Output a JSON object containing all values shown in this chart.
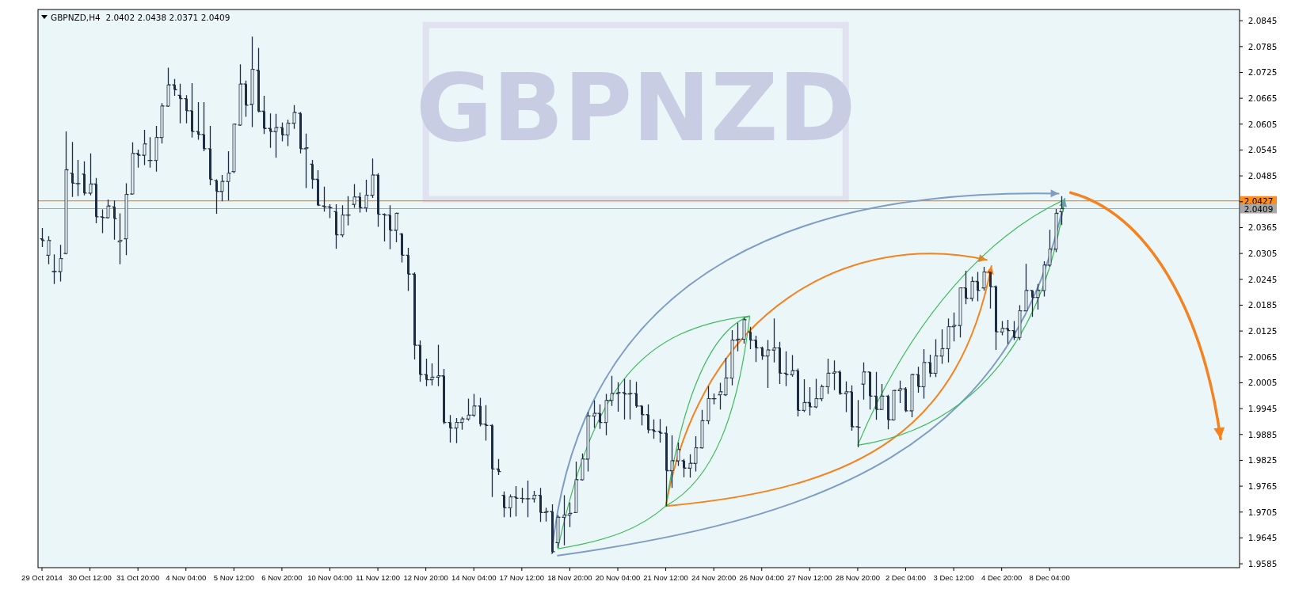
{
  "chart_data": {
    "type": "candlestick",
    "title": "GBPNZD,H4  2.0402 2.0438 2.0371 2.0409",
    "annotations": [
      "GBPNZD"
    ],
    "color": "#1f2d42",
    "categories": [
      "29 Oct 2014",
      null,
      null,
      null,
      null,
      null,
      null,
      null,
      "30 Oct 12:00",
      null,
      null,
      null,
      null,
      null,
      null,
      null,
      "31 Oct 20:00",
      null,
      null,
      null,
      null,
      null,
      null,
      null,
      "4 Nov 04:00",
      null,
      null,
      null,
      null,
      null,
      null,
      null,
      "5 Nov 12:00",
      null,
      null,
      null,
      null,
      null,
      null,
      null,
      "6 Nov 20:00",
      null,
      null,
      null,
      null,
      null,
      null,
      null,
      "10 Nov 04:00",
      null,
      null,
      null,
      null,
      null,
      null,
      null,
      "11 Nov 12:00",
      null,
      null,
      null,
      null,
      null,
      null,
      null,
      "12 Nov 20:00",
      null,
      null,
      null,
      null,
      null,
      null,
      null,
      "14 Nov 04:00",
      null,
      null,
      null,
      null,
      null,
      null,
      null,
      "17 Nov 12:00",
      null,
      null,
      null,
      null,
      null,
      null,
      null,
      "18 Nov 20:00",
      null,
      null,
      null,
      null,
      null,
      null,
      null,
      "20 Nov 04:00",
      null,
      null,
      null,
      null,
      null,
      null,
      null,
      "21 Nov 12:00",
      null,
      null,
      null,
      null,
      null,
      null,
      null,
      "24 Nov 20:00",
      null,
      null,
      null,
      null,
      null,
      null,
      null,
      "26 Nov 04:00",
      null,
      null,
      null,
      null,
      null,
      null,
      null,
      "27 Nov 12:00",
      null,
      null,
      null,
      null,
      null,
      null,
      null,
      "28 Nov 20:00",
      null,
      null,
      null,
      null,
      null,
      null,
      null,
      "2 Dec 04:00",
      null,
      null,
      null,
      null,
      null,
      null,
      null,
      "3 Dec 12:00",
      null,
      null,
      null,
      null,
      null,
      null,
      null,
      "4 Dec 20:00",
      null,
      null,
      null,
      null,
      null,
      null,
      null,
      "8 Dec 04:00",
      null,
      null,
      null,
      null,
      null,
      null,
      null,
      null,
      null,
      null,
      null,
      null,
      null,
      null,
      null,
      null,
      null,
      null,
      null,
      null,
      null,
      null,
      null,
      null,
      null,
      null,
      null,
      null,
      null,
      null,
      null
    ],
    "ohlc": [
      [
        2.0339,
        2.0364,
        2.032,
        2.0335
      ],
      [
        2.0301,
        2.0345,
        2.028,
        2.0335
      ],
      [
        2.0263,
        2.0303,
        2.0234,
        2.0263
      ],
      [
        2.0263,
        2.0325,
        2.024,
        2.0293
      ],
      [
        2.0305,
        2.0588,
        2.0303,
        2.0499
      ],
      [
        2.0491,
        2.0564,
        2.0436,
        2.0468
      ],
      [
        2.0467,
        2.0522,
        2.0438,
        2.0467
      ],
      [
        2.0489,
        2.0519,
        2.044,
        2.0445
      ],
      [
        2.0445,
        2.0537,
        2.044,
        2.0466
      ],
      [
        2.0466,
        2.048,
        2.0375,
        2.039
      ],
      [
        2.039,
        2.0407,
        2.0352,
        2.0388
      ],
      [
        2.0388,
        2.043,
        2.0386,
        2.0415
      ],
      [
        2.0413,
        2.0428,
        2.0337,
        2.0386
      ],
      [
        2.0332,
        2.0398,
        2.028,
        2.0335
      ],
      [
        2.0339,
        2.0468,
        2.0301,
        2.0442
      ],
      [
        2.0443,
        2.0563,
        2.0442,
        2.0537
      ],
      [
        2.0537,
        2.0546,
        2.0504,
        2.0533
      ],
      [
        2.0533,
        2.0592,
        2.051,
        2.0559
      ],
      [
        2.0521,
        2.0575,
        2.0504,
        2.0521
      ],
      [
        2.0521,
        2.0601,
        2.0495,
        2.0574
      ],
      [
        2.0574,
        2.0654,
        2.056,
        2.0647
      ],
      [
        2.0647,
        2.0736,
        2.0645,
        2.0696
      ],
      [
        2.0696,
        2.071,
        2.0671,
        2.0685
      ],
      [
        2.0672,
        2.0699,
        2.0607,
        2.0664
      ],
      [
        2.0664,
        2.0672,
        2.0607,
        2.0636
      ],
      [
        2.0636,
        2.07,
        2.0574,
        2.0588
      ],
      [
        2.0588,
        2.0656,
        2.0569,
        2.0581
      ],
      [
        2.0581,
        2.0656,
        2.0542,
        2.0548
      ],
      [
        2.0548,
        2.0601,
        2.0463,
        2.0477
      ],
      [
        2.0474,
        2.0477,
        2.0397,
        2.0449
      ],
      [
        2.0449,
        2.0487,
        2.0426,
        2.0472
      ],
      [
        2.0472,
        2.0542,
        2.0428,
        2.0491
      ],
      [
        2.0495,
        2.0605,
        2.0491,
        2.0605
      ],
      [
        2.0603,
        2.0744,
        2.0601,
        2.0698
      ],
      [
        2.0698,
        2.0706,
        2.0622,
        2.0649
      ],
      [
        2.0651,
        2.0808,
        2.0598,
        2.0732
      ],
      [
        2.073,
        2.0782,
        2.0632,
        2.0635
      ],
      [
        2.0635,
        2.0671,
        2.0582,
        2.0595
      ],
      [
        2.0595,
        2.063,
        2.055,
        2.0588
      ],
      [
        2.0588,
        2.0629,
        2.0527,
        2.0597
      ],
      [
        2.0597,
        2.0609,
        2.0565,
        2.058
      ],
      [
        2.058,
        2.0615,
        2.0554,
        2.0607
      ],
      [
        2.0607,
        2.0649,
        2.0594,
        2.0632
      ],
      [
        2.063,
        2.0633,
        2.0537,
        2.0548
      ],
      [
        2.0548,
        2.0583,
        2.0457,
        2.055
      ],
      [
        2.0512,
        2.0522,
        2.0455,
        2.0477
      ],
      [
        2.0477,
        2.0498,
        2.0415,
        2.0417
      ],
      [
        2.0415,
        2.046,
        2.0402,
        2.0413
      ],
      [
        2.0413,
        2.0419,
        2.0387,
        2.0411
      ],
      [
        2.0402,
        2.0419,
        2.0316,
        2.0348
      ],
      [
        2.0348,
        2.0417,
        2.0343,
        2.0394
      ],
      [
        2.0394,
        2.0438,
        2.037,
        2.0394
      ],
      [
        2.0419,
        2.0466,
        2.0411,
        2.0436
      ],
      [
        2.0436,
        2.0446,
        2.04,
        2.0411
      ],
      [
        2.0411,
        2.0476,
        2.0401,
        2.044
      ],
      [
        2.044,
        2.0525,
        2.0434,
        2.0487
      ],
      [
        2.0487,
        2.0491,
        2.0367,
        2.0396
      ],
      [
        2.0396,
        2.0398,
        2.0333,
        2.0394
      ],
      [
        2.0394,
        2.0417,
        2.0315,
        2.0359
      ],
      [
        2.0359,
        2.04,
        2.0331,
        2.0398
      ],
      [
        2.035,
        2.0353,
        2.0284,
        2.0301
      ],
      [
        2.0301,
        2.0318,
        2.0218,
        2.0257
      ],
      [
        2.0257,
        2.0261,
        2.0059,
        2.0092
      ],
      [
        2.0092,
        2.0103,
        2.0007,
        2.0024
      ],
      [
        2.0024,
        2.0061,
        1.9997,
        2.0012
      ],
      [
        2.0012,
        2.005,
        1.9999,
        2.0018
      ],
      [
        2.0018,
        2.0093,
        1.9997,
        2.0021
      ],
      [
        2.0021,
        2.0037,
        1.9909,
        1.9913
      ],
      [
        1.9913,
        1.993,
        1.9866,
        1.99
      ],
      [
        1.99,
        1.9923,
        1.9865,
        1.9913
      ],
      [
        1.9913,
        1.9926,
        1.9896,
        1.9921
      ],
      [
        1.9921,
        1.9968,
        1.9917,
        1.993
      ],
      [
        1.993,
        1.9979,
        1.9926,
        1.9951
      ],
      [
        1.9951,
        1.997,
        1.9904,
        1.9909
      ],
      [
        1.9909,
        1.9953,
        1.9871,
        1.9906
      ],
      [
        1.9906,
        1.9909,
        1.974,
        1.9805
      ],
      [
        1.9805,
        1.9828,
        1.9791,
        1.9799
      ],
      [
        1.9744,
        1.9753,
        1.9693,
        1.9715
      ],
      [
        1.9715,
        1.9746,
        1.9693,
        1.974
      ],
      [
        1.974,
        1.9765,
        1.9695,
        1.9737
      ],
      [
        1.9737,
        1.9761,
        1.9726,
        1.9736
      ],
      [
        1.9736,
        1.9778,
        1.9693,
        1.9736
      ],
      [
        1.9736,
        1.9754,
        1.9727,
        1.9744
      ],
      [
        1.9744,
        1.9761,
        1.9682,
        1.9704
      ],
      [
        1.9704,
        1.9715,
        1.9683,
        1.9706
      ],
      [
        1.9706,
        1.9723,
        1.9609,
        1.9613
      ],
      [
        1.9634,
        1.9698,
        1.9622,
        1.9693
      ],
      [
        1.9693,
        1.9744,
        1.9628,
        1.9698
      ],
      [
        1.9698,
        1.9727,
        1.967,
        1.9702
      ],
      [
        1.9704,
        1.9822,
        1.9704,
        1.978
      ],
      [
        1.978,
        1.9841,
        1.9778,
        1.9828
      ],
      [
        1.9828,
        1.9937,
        1.9799,
        1.9928
      ],
      [
        1.9928,
        1.9964,
        1.99,
        1.9934
      ],
      [
        1.9934,
        1.9955,
        1.9898,
        1.9913
      ],
      [
        1.9913,
        1.9979,
        1.9883,
        1.9964
      ],
      [
        1.9964,
        2.0021,
        1.9951,
        1.998
      ],
      [
        1.998,
        2.0006,
        1.9938,
        1.9982
      ],
      [
        1.9982,
        2.0014,
        1.992,
        1.9979
      ],
      [
        1.9979,
        2.0012,
        1.992,
        1.998
      ],
      [
        1.998,
        2.0007,
        1.9947,
        1.9951
      ],
      [
        1.9951,
        1.9953,
        1.9906,
        1.9931
      ],
      [
        1.9931,
        1.9955,
        1.9888,
        1.9896
      ],
      [
        1.9896,
        1.992,
        1.9875,
        1.9892
      ],
      [
        1.9892,
        1.9921,
        1.9866,
        1.9888
      ],
      [
        1.9888,
        1.9904,
        1.9719,
        1.9801
      ],
      [
        1.9801,
        1.9883,
        1.9761,
        1.9824
      ],
      [
        1.9824,
        1.9866,
        1.9812,
        1.985
      ],
      [
        1.9824,
        1.9828,
        1.9786,
        1.9807
      ],
      [
        1.9807,
        1.9839,
        1.9785,
        1.9818
      ],
      [
        1.9818,
        1.9881,
        1.9799,
        1.9854
      ],
      [
        1.9854,
        1.9942,
        1.9852,
        1.9917
      ],
      [
        1.9917,
        1.9997,
        1.9909,
        1.9968
      ],
      [
        1.9968,
        1.998,
        1.9955,
        1.9968
      ],
      [
        1.9977,
        2.0005,
        1.9943,
        1.9984
      ],
      [
        1.9977,
        2.0063,
        1.9974,
        2.0016
      ],
      [
        2.0016,
        2.0127,
        1.9999,
        2.0104
      ],
      [
        2.0104,
        2.0144,
        2.0078,
        2.0106
      ],
      [
        2.0106,
        2.0157,
        2.0096,
        2.0151
      ],
      [
        2.0123,
        2.0135,
        2.0083,
        2.0104
      ],
      [
        2.0104,
        2.0114,
        2.0053,
        2.0086
      ],
      [
        2.0086,
        2.0089,
        2.0058,
        2.0067
      ],
      [
        2.0067,
        2.0104,
        1.9993,
        2.0081
      ],
      [
        2.0081,
        2.0154,
        2.0052,
        2.0086
      ],
      [
        2.0086,
        2.01,
        2.0002,
        2.0027
      ],
      [
        2.0027,
        2.0078,
        1.9997,
        2.0024
      ],
      [
        2.0024,
        2.0069,
        2.0019,
        2.0033
      ],
      [
        2.0033,
        2.0038,
        1.9927,
        1.9941
      ],
      [
        1.9941,
        2.0013,
        1.9937,
        1.9959
      ],
      [
        1.9959,
        1.9995,
        1.9929,
        1.9949
      ],
      [
        1.9949,
        2.0014,
        1.9946,
        1.9968
      ],
      [
        1.9968,
        2.0001,
        1.9962,
        1.9996
      ],
      [
        1.9996,
        2.0061,
        1.9979,
        2.0027
      ],
      [
        2.0027,
        2.0057,
        1.9988,
        2.003
      ],
      [
        2.003,
        2.0034,
        1.9977,
        1.998
      ],
      [
        1.998,
        2.0008,
        1.9937,
        1.9984
      ],
      [
        1.9984,
        1.9999,
        1.9894,
        1.9903
      ],
      [
        1.9903,
        1.9965,
        1.9855,
        1.9902
      ],
      [
        2.0002,
        2.0052,
        1.9966,
        2.003
      ],
      [
        2.003,
        2.003,
        1.9943,
        1.9974
      ],
      [
        1.9974,
        2.003,
        1.9919,
        1.9943
      ],
      [
        1.9943,
        2.0002,
        1.9943,
        1.9974
      ],
      [
        1.9974,
        1.9977,
        1.9897,
        1.9919
      ],
      [
        1.9919,
        1.9988,
        1.9917,
        1.9987
      ],
      [
        1.9987,
        2.001,
        1.9958,
        1.9991
      ],
      [
        1.9991,
        1.9995,
        1.9937,
        1.994
      ],
      [
        1.994,
        2.0026,
        1.9925,
        2.0024
      ],
      [
        2.0024,
        2.0042,
        1.9982,
        1.9996
      ],
      [
        1.9996,
        2.0083,
        1.9968,
        2.0052
      ],
      [
        2.0052,
        2.007,
        2.0018,
        2.0027
      ],
      [
        2.0027,
        2.0106,
        2.0018,
        2.0067
      ],
      [
        2.0067,
        2.0129,
        2.0049,
        2.0084
      ],
      [
        2.0084,
        2.0154,
        2.0052,
        2.0135
      ],
      [
        2.0135,
        2.0168,
        2.0101,
        2.0138
      ],
      [
        2.0138,
        2.0226,
        2.011,
        2.0225
      ],
      [
        2.0225,
        2.0265,
        2.0187,
        2.0201
      ],
      [
        2.0201,
        2.0251,
        2.0194,
        2.024
      ],
      [
        2.024,
        2.0262,
        2.0194,
        2.0219
      ],
      [
        2.0225,
        2.0274,
        2.0219,
        2.0262
      ],
      [
        2.0262,
        2.0262,
        2.0177,
        2.0228
      ],
      [
        2.0228,
        2.0231,
        2.0081,
        2.0123
      ],
      [
        2.0123,
        2.0148,
        2.0115,
        2.0131
      ],
      [
        2.0131,
        2.0151,
        2.0095,
        2.0126
      ],
      [
        2.0126,
        2.0148,
        2.0104,
        2.011
      ],
      [
        2.011,
        2.0185,
        2.0104,
        2.0172
      ],
      [
        2.0172,
        2.0281,
        2.0172,
        2.0219
      ],
      [
        2.0219,
        2.022,
        2.0158,
        2.0203
      ],
      [
        2.0203,
        2.0234,
        2.0175,
        2.0219
      ],
      [
        2.0219,
        2.0287,
        2.0205,
        2.0278
      ],
      [
        2.0278,
        2.036,
        2.0274,
        2.0315
      ],
      [
        2.0315,
        2.0408,
        2.0308,
        2.0398
      ],
      [
        2.0402,
        2.0438,
        2.0371,
        2.0409
      ],
      null,
      null,
      null,
      null,
      null,
      null,
      null,
      null,
      null,
      null,
      null,
      null,
      null,
      null,
      null,
      null,
      null,
      null,
      null,
      null,
      null,
      null,
      null,
      null,
      null,
      null,
      null,
      null,
      null
    ],
    "ylim": [
      1.9576,
      2.0871
    ],
    "yticks": [
      1.9585,
      1.9645,
      1.9705,
      1.9765,
      1.9825,
      1.9885,
      1.9945,
      2.0005,
      2.0065,
      2.0125,
      2.0185,
      2.0245,
      2.0305,
      2.0365,
      {
        "value": 2.0425,
        "label": null
      },
      2.0485,
      2.0545,
      2.0605,
      2.0665,
      2.0725,
      2.0785,
      2.0845
    ],
    "ref_lines": [
      {
        "axis": "y",
        "value": 2.0427,
        "label": "2.0427",
        "color": "#ff8c1a"
      },
      {
        "axis": "y",
        "value": 2.0409,
        "label": "2.0409",
        "color": "#a8a8a8"
      }
    ]
  }
}
